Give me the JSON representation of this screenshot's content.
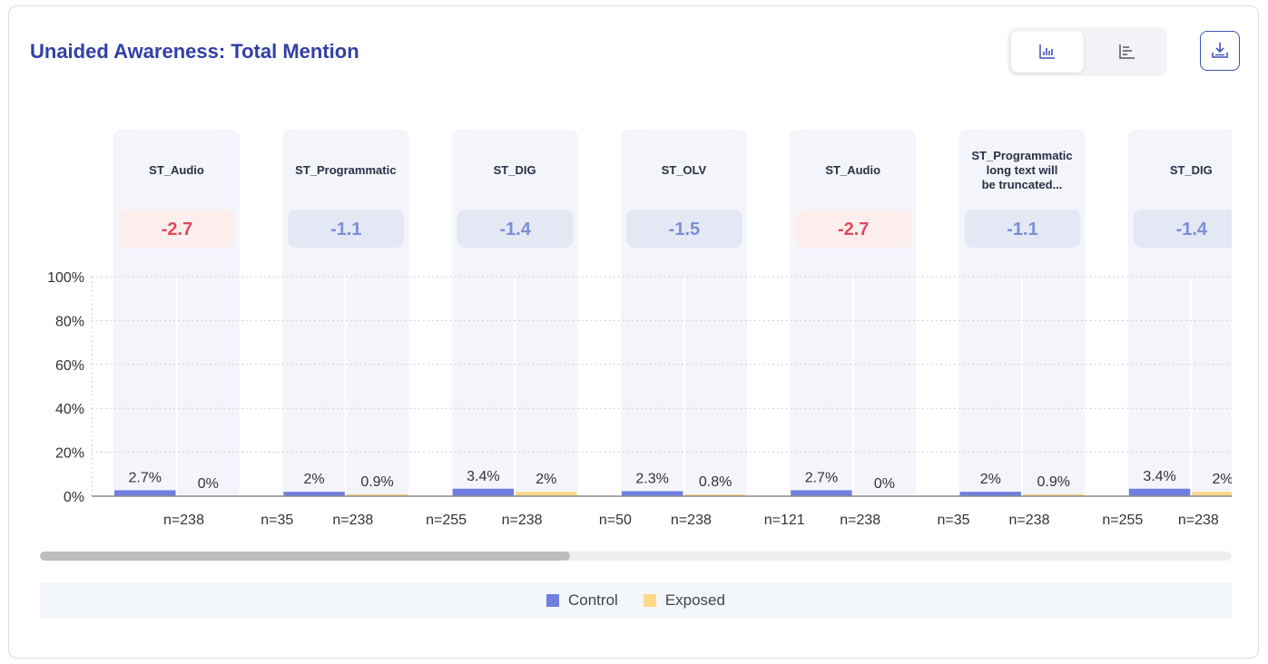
{
  "header": {
    "title": "Unaided Awareness: Total Mention",
    "toggle": [
      {
        "icon": "bar-chart-icon",
        "active": true
      },
      {
        "icon": "horizontal-bar-chart-icon",
        "active": false
      }
    ],
    "download_icon": "download-icon"
  },
  "colors": {
    "control": "#6f7fe0",
    "exposed": "#ffd88a",
    "negative_text": "#e3485a",
    "negative_bg": "#fdeeee",
    "neutral_text": "#7b8fd6",
    "neutral_bg": "#e3e8f4",
    "column_bg": "#f3f5fb"
  },
  "chart_data": {
    "type": "bar",
    "y_ticks": [
      "100%",
      "80%",
      "60%",
      "40%",
      "20%",
      "0%"
    ],
    "ylim": [
      0,
      100
    ],
    "grid": true,
    "legend_position": "bottom",
    "series_names": [
      "Control",
      "Exposed"
    ],
    "groups": [
      {
        "name": "ST_Audio",
        "lift": "-2.7",
        "lift_tone": "negative",
        "control": 2.7,
        "exposed": 0,
        "control_label": "2.7%",
        "exposed_label": "0%",
        "control_n": "",
        "exposed_n": "n=238"
      },
      {
        "name": "ST_Programmatic",
        "lift": "-1.1",
        "lift_tone": "neutral",
        "control": 2,
        "exposed": 0.9,
        "control_label": "2%",
        "exposed_label": "0.9%",
        "control_n": "n=35",
        "exposed_n": "n=238"
      },
      {
        "name": "ST_DIG",
        "lift": "-1.4",
        "lift_tone": "neutral",
        "control": 3.4,
        "exposed": 2,
        "control_label": "3.4%",
        "exposed_label": "2%",
        "control_n": "n=255",
        "exposed_n": "n=238"
      },
      {
        "name": "ST_OLV",
        "lift": "-1.5",
        "lift_tone": "neutral",
        "control": 2.3,
        "exposed": 0.8,
        "control_label": "2.3%",
        "exposed_label": "0.8%",
        "control_n": "n=50",
        "exposed_n": "n=238"
      },
      {
        "name": "ST_Audio",
        "lift": "-2.7",
        "lift_tone": "negative",
        "control": 2.7,
        "exposed": 0,
        "control_label": "2.7%",
        "exposed_label": "0%",
        "control_n": "n=121",
        "exposed_n": "n=238"
      },
      {
        "name": "ST_Programmatic long text will be truncated...",
        "lift": "-1.1",
        "lift_tone": "neutral",
        "control": 2,
        "exposed": 0.9,
        "control_label": "2%",
        "exposed_label": "0.9%",
        "control_n": "n=35",
        "exposed_n": "n=238"
      },
      {
        "name": "ST_DIG",
        "lift": "-1.4",
        "lift_tone": "neutral",
        "control": 3.4,
        "exposed": 2,
        "control_label": "3.4%",
        "exposed_label": "2%",
        "control_n": "n=255",
        "exposed_n": "n=238"
      }
    ]
  },
  "legend": [
    {
      "label": "Control",
      "color": "#6f7fe0"
    },
    {
      "label": "Exposed",
      "color": "#ffd88a"
    }
  ]
}
